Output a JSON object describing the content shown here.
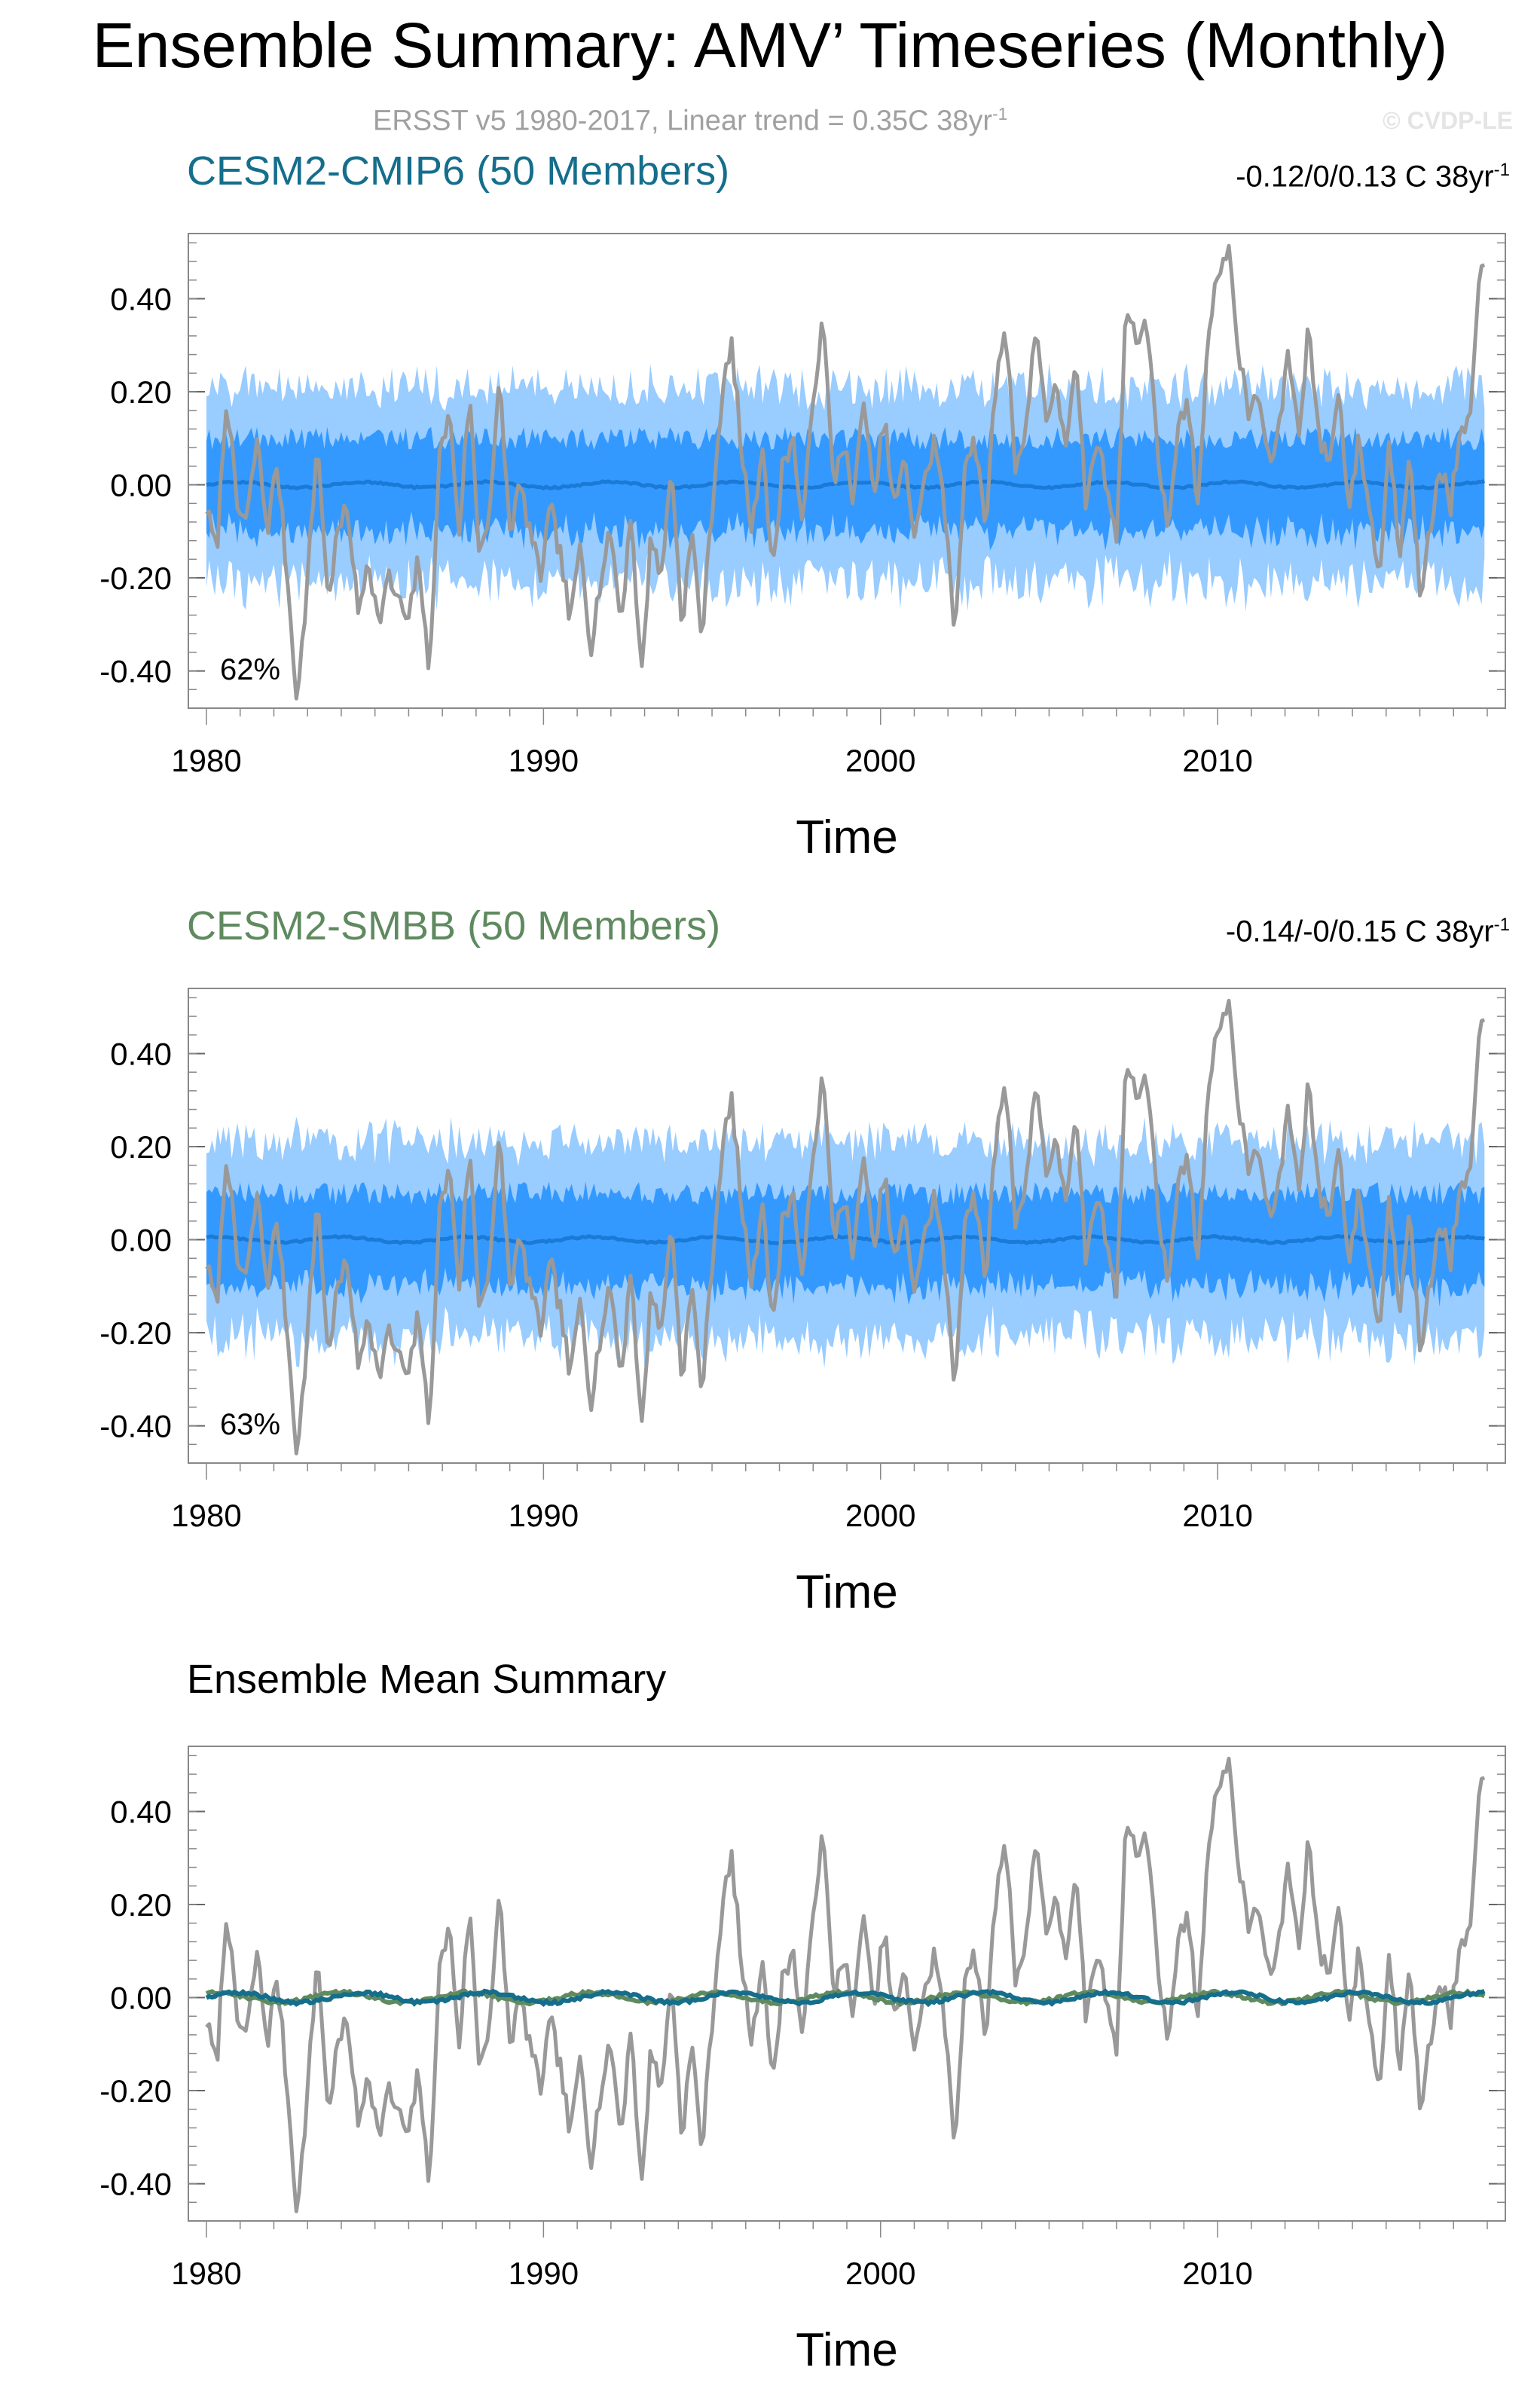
{
  "header": {
    "title": "Ensemble Summary: AMV’ Timeseries (Monthly)",
    "subtitle": "ERSST v5 1980-2017, Linear trend = 0.35C 38yr",
    "subtitle_sup": "-1",
    "watermark": "© CVDP-LE"
  },
  "colors": {
    "obs": "#999999",
    "band_outer": "#99ccff",
    "band_inner": "#3399ff",
    "ens_mean": "#1a7ad6",
    "cmip6": "#146e8c",
    "smbb": "#5f8a5f"
  },
  "chart_data": [
    {
      "type": "area",
      "title": "CESM2-CMIP6 (50 Members)",
      "title_color": "#146e8c",
      "trend_text": "-0.12/0/0.13 C 38yr",
      "trend_sup": "-1",
      "percent_label": "62%",
      "xlabel": "Time",
      "xlim": [
        1980,
        2018
      ],
      "ylim": [
        -0.48,
        0.54
      ],
      "xticks": [
        1980,
        1990,
        2000,
        2010
      ],
      "yticks": [
        -0.4,
        -0.2,
        0.0,
        0.2,
        0.4
      ],
      "ytick_labels": [
        "-0.40",
        "-0.20",
        "0.00",
        "0.20",
        "0.40"
      ],
      "series": [
        {
          "role": "observations",
          "color": "#999999"
        },
        {
          "role": "ensemble-mean",
          "color": "#1a7ad6"
        },
        {
          "role": "10-90 percentile spread",
          "color": "#99ccff"
        },
        {
          "role": "25-75 percentile spread",
          "color": "#3399ff"
        }
      ]
    },
    {
      "type": "area",
      "title": "CESM2-SMBB (50 Members)",
      "title_color": "#5f8a5f",
      "trend_text": "-0.14/-0/0.15 C 38yr",
      "trend_sup": "-1",
      "percent_label": "63%",
      "xlabel": "Time",
      "xlim": [
        1980,
        2018
      ],
      "ylim": [
        -0.48,
        0.54
      ],
      "xticks": [
        1980,
        1990,
        2000,
        2010
      ],
      "yticks": [
        -0.4,
        -0.2,
        0.0,
        0.2,
        0.4
      ],
      "ytick_labels": [
        "-0.40",
        "-0.20",
        "0.00",
        "0.20",
        "0.40"
      ],
      "series": [
        {
          "role": "observations",
          "color": "#999999"
        },
        {
          "role": "ensemble-mean",
          "color": "#1a7ad6"
        },
        {
          "role": "10-90 percentile spread",
          "color": "#99ccff"
        },
        {
          "role": "25-75 percentile spread",
          "color": "#3399ff"
        }
      ]
    },
    {
      "type": "line",
      "title": "Ensemble Mean Summary",
      "title_color": "#000000",
      "xlabel": "Time",
      "xlim": [
        1980,
        2018
      ],
      "ylim": [
        -0.48,
        0.54
      ],
      "xticks": [
        1980,
        1990,
        2000,
        2010
      ],
      "yticks": [
        -0.4,
        -0.2,
        0.0,
        0.2,
        0.4
      ],
      "ytick_labels": [
        "-0.40",
        "-0.20",
        "0.00",
        "0.20",
        "0.40"
      ],
      "series": [
        {
          "role": "observations",
          "color": "#999999"
        },
        {
          "role": "CESM2-CMIP6 ensemble mean",
          "color": "#146e8c"
        },
        {
          "role": "CESM2-SMBB ensemble mean",
          "color": "#5f8a5f"
        }
      ]
    }
  ],
  "obs_anchors": {
    "x": [
      1980.0,
      1980.3,
      1980.6,
      1980.9,
      1981.2,
      1981.5,
      1981.8,
      1982.1,
      1982.4,
      1982.7,
      1983.0,
      1983.3,
      1983.6,
      1983.9,
      1984.2,
      1984.5,
      1984.8,
      1985.1,
      1985.4,
      1985.7,
      1986.0,
      1986.3,
      1986.6,
      1986.9,
      1987.2,
      1987.5,
      1987.8,
      1988.1,
      1988.4,
      1988.7,
      1989.0,
      1989.3,
      1989.6,
      1989.9,
      1990.2,
      1990.5,
      1990.8,
      1991.1,
      1991.4,
      1991.7,
      1992.0,
      1992.3,
      1992.6,
      1992.9,
      1993.2,
      1993.5,
      1993.8,
      1994.1,
      1994.4,
      1994.7,
      1995.0,
      1995.3,
      1995.6,
      1995.9,
      1996.2,
      1996.5,
      1996.8,
      1997.1,
      1997.4,
      1997.7,
      1998.0,
      1998.3,
      1998.6,
      1998.9,
      1999.2,
      1999.5,
      1999.8,
      2000.1,
      2000.4,
      2000.7,
      2001.0,
      2001.3,
      2001.6,
      2001.9,
      2002.2,
      2002.5,
      2002.8,
      2003.1,
      2003.4,
      2003.7,
      2004.0,
      2004.3,
      2004.6,
      2004.9,
      2005.2,
      2005.5,
      2005.8,
      2006.1,
      2006.4,
      2006.7,
      2007.0,
      2007.3,
      2007.6,
      2007.9,
      2008.2,
      2008.5,
      2008.8,
      2009.1,
      2009.4,
      2009.7,
      2010.0,
      2010.3,
      2010.6,
      2010.9,
      2011.2,
      2011.5,
      2011.8,
      2012.1,
      2012.4,
      2012.7,
      2013.0,
      2013.3,
      2013.6,
      2013.9,
      2014.2,
      2014.5,
      2014.8,
      2015.1,
      2015.4,
      2015.7,
      2016.0,
      2016.3,
      2016.6,
      2016.9,
      2017.2,
      2017.5,
      2017.8
    ],
    "y": [
      -0.05,
      -0.15,
      0.2,
      -0.05,
      -0.08,
      0.1,
      -0.1,
      0.05,
      -0.2,
      -0.47,
      -0.2,
      0.1,
      -0.25,
      -0.1,
      -0.05,
      -0.28,
      -0.15,
      -0.3,
      -0.2,
      -0.25,
      -0.3,
      -0.15,
      -0.42,
      0.05,
      0.16,
      -0.1,
      0.2,
      -0.15,
      -0.05,
      0.22,
      -0.1,
      0.0,
      -0.1,
      -0.2,
      -0.05,
      -0.15,
      -0.3,
      -0.12,
      -0.35,
      -0.2,
      -0.1,
      -0.3,
      -0.05,
      -0.42,
      -0.1,
      -0.2,
      0.05,
      -0.3,
      -0.1,
      -0.33,
      -0.05,
      0.2,
      0.3,
      0.05,
      -0.1,
      0.1,
      -0.2,
      0.05,
      0.1,
      -0.1,
      0.2,
      0.35,
      0.0,
      0.1,
      -0.05,
      0.2,
      -0.05,
      0.15,
      -0.05,
      0.05,
      -0.1,
      0.0,
      0.1,
      -0.05,
      -0.33,
      0.05,
      0.1,
      -0.1,
      0.2,
      0.35,
      0.05,
      0.1,
      0.35,
      0.15,
      0.2,
      0.1,
      0.25,
      -0.05,
      0.1,
      0.0,
      -0.1,
      0.4,
      0.3,
      0.35,
      0.1,
      -0.1,
      0.1,
      0.2,
      -0.05,
      0.3,
      0.45,
      0.52,
      0.3,
      0.15,
      0.2,
      0.05,
      0.1,
      0.3,
      0.1,
      0.35,
      0.1,
      0.05,
      0.2,
      -0.05,
      0.1,
      -0.05,
      -0.2,
      0.1,
      -0.15,
      0.1,
      -0.25,
      -0.1,
      0.05,
      -0.05,
      0.1,
      0.15,
      0.46
    ]
  }
}
